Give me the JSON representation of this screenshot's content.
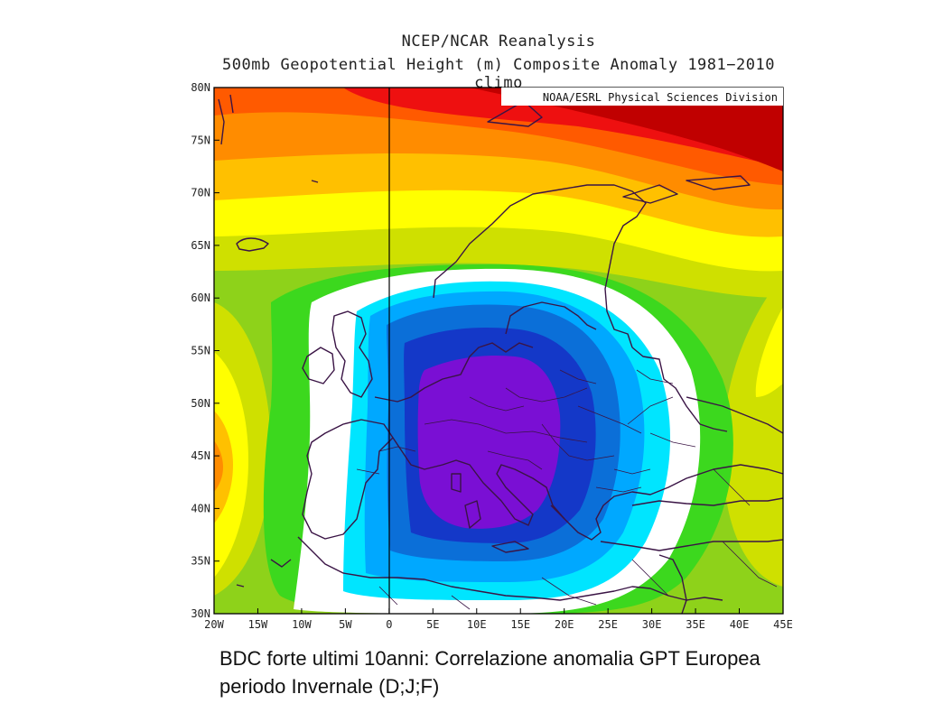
{
  "header": {
    "title": "NCEP/NCAR Reanalysis",
    "subtitle": "500mb Geopotential Height (m) Composite Anomaly 1981−2010 climo"
  },
  "credit": "NOAA/ESRL Physical Sciences Division",
  "axes": {
    "x_ticks": [
      "20W",
      "15W",
      "10W",
      "5W",
      "0",
      "5E",
      "10E",
      "15E",
      "20E",
      "25E",
      "30E",
      "35E",
      "40E",
      "45E"
    ],
    "y_ticks": [
      "80N",
      "75N",
      "70N",
      "65N",
      "60N",
      "55N",
      "50N",
      "45N",
      "40N",
      "35N",
      "30N"
    ]
  },
  "map": {
    "lon_range": [
      -20,
      45
    ],
    "lat_range": [
      30,
      80
    ],
    "colors": {
      "deep_red": "#c00000",
      "red": "#ee1010",
      "orange_red": "#ff5a00",
      "orange": "#ff8c00",
      "amber": "#ffc000",
      "yellow": "#ffff00",
      "yellow_green": "#cfe000",
      "light_green": "#8ed21a",
      "green": "#3cd81e",
      "white": "#ffffff",
      "cyan": "#00e5ff",
      "light_blue": "#00a8ff",
      "blue": "#0b6fd8",
      "dark_blue": "#1438c8",
      "purple": "#7a0fd4",
      "coastline": "#3a1445"
    }
  },
  "caption": {
    "line1": "BDC forte ultimi 10anni: Correlazione anomalia GPT Europea",
    "line2": "periodo Invernale (D;J;F)"
  }
}
